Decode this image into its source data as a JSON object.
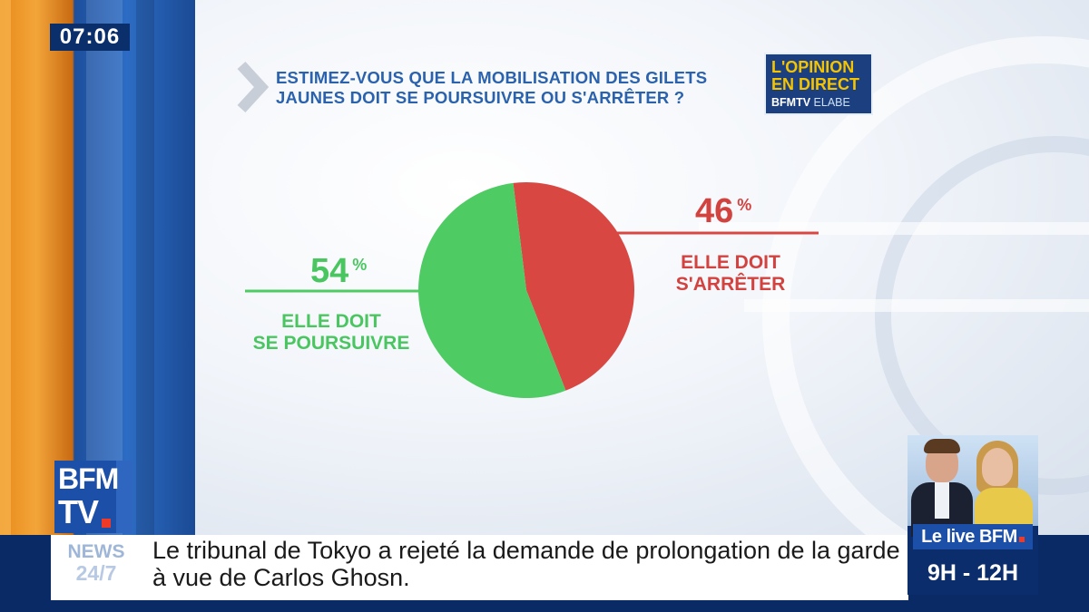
{
  "clock": "07:06",
  "question": "ESTIMEZ-VOUS QUE LA MOBILISATION DES GILETS JAUNES DOIT SE POURSUIVRE OU S'ARRÊTER ?",
  "opinion_logo": {
    "line1": "L'OPINION",
    "line2": "EN DIRECT",
    "line3_brand": "BFMTV",
    "line3_partner": "ELABE"
  },
  "chart_data": {
    "type": "pie",
    "title": "",
    "slices": [
      {
        "label_line1": "ELLE DOIT",
        "label_line2": "SE POURSUIVRE",
        "value": 54,
        "display": "54",
        "color": "#4fcb64"
      },
      {
        "label_line1": "ELLE DOIT",
        "label_line2": "S'ARRÊTER",
        "value": 46,
        "display": "46",
        "color": "#d94743"
      }
    ],
    "unit": "%",
    "legend": "labels beside slices"
  },
  "ticker": {
    "tag_line1": "NEWS",
    "tag_line2": "24/7",
    "headline": "Le tribunal de Tokyo a rejeté la demande de prolongation de la garde à vue de Carlos Ghosn."
  },
  "channel_logo": {
    "line1": "BFM",
    "line2": "TV"
  },
  "promo": {
    "show": "Le live BFM",
    "time": "9H - 12H"
  }
}
